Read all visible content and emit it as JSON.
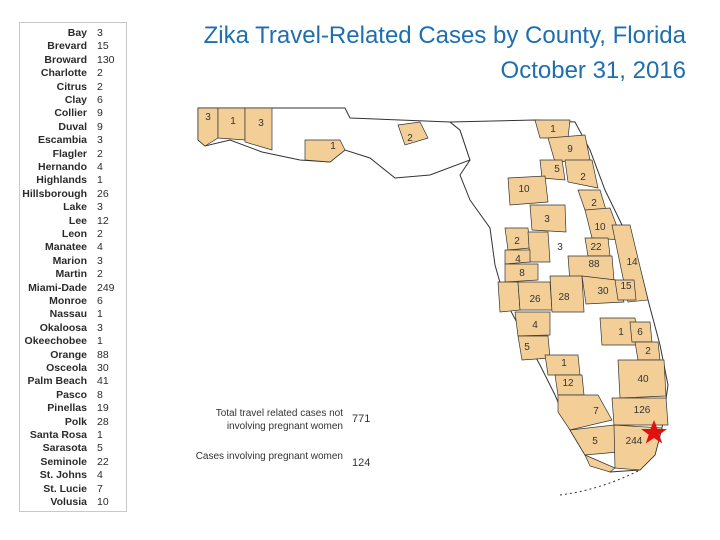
{
  "title": {
    "line1": "Zika Travel-Related Cases by County, Florida",
    "line2": "October 31, 2016"
  },
  "counties": [
    {
      "name": "Bay",
      "value": "3"
    },
    {
      "name": "Brevard",
      "value": "15"
    },
    {
      "name": "Broward",
      "value": "130"
    },
    {
      "name": "Charlotte",
      "value": "2"
    },
    {
      "name": "Citrus",
      "value": "2"
    },
    {
      "name": "Clay",
      "value": "6"
    },
    {
      "name": "Collier",
      "value": "9"
    },
    {
      "name": "Duval",
      "value": "9"
    },
    {
      "name": "Escambia",
      "value": "3"
    },
    {
      "name": "Flagler",
      "value": "2"
    },
    {
      "name": "Hernando",
      "value": "4"
    },
    {
      "name": "Highlands",
      "value": "1"
    },
    {
      "name": "Hillsborough",
      "value": "26"
    },
    {
      "name": "Lake",
      "value": "3"
    },
    {
      "name": "Lee",
      "value": "12"
    },
    {
      "name": "Leon",
      "value": "2"
    },
    {
      "name": "Manatee",
      "value": "4"
    },
    {
      "name": "Marion",
      "value": "3"
    },
    {
      "name": "Martin",
      "value": "2"
    },
    {
      "name": "Miami-Dade",
      "value": "249"
    },
    {
      "name": "Monroe",
      "value": "6"
    },
    {
      "name": "Nassau",
      "value": "1"
    },
    {
      "name": "Okaloosa",
      "value": "3"
    },
    {
      "name": "Okeechobee",
      "value": "1"
    },
    {
      "name": "Orange",
      "value": "88"
    },
    {
      "name": "Osceola",
      "value": "30"
    },
    {
      "name": "Palm Beach",
      "value": "41"
    },
    {
      "name": "Pasco",
      "value": "8"
    },
    {
      "name": "Pinellas",
      "value": "19"
    },
    {
      "name": "Polk",
      "value": "28"
    },
    {
      "name": "Santa Rosa",
      "value": "1"
    },
    {
      "name": "Sarasota",
      "value": "5"
    },
    {
      "name": "Seminole",
      "value": "22"
    },
    {
      "name": "St. Johns",
      "value": "4"
    },
    {
      "name": "St. Lucie",
      "value": "7"
    },
    {
      "name": "Volusia",
      "value": "10"
    }
  ],
  "map_labels": [
    "3",
    "1",
    "3",
    "1",
    "2",
    "1",
    "9",
    "5",
    "2",
    "10",
    "3",
    "2",
    "10",
    "2",
    "3",
    "22",
    "4",
    "88",
    "8",
    "14",
    "26",
    "28",
    "30",
    "15",
    "4",
    "1",
    "6",
    "5",
    "2",
    "1",
    "40",
    "12",
    "7",
    "126",
    "5",
    "244"
  ],
  "stats": {
    "travel_label": "Total travel related cases not involving pregnant women",
    "travel_value": "771",
    "pregnant_label": "Cases involving pregnant women",
    "pregnant_value": "124"
  },
  "colors": {
    "affected": "#f3cf97",
    "unaffected": "#ffffff",
    "border": "#333333",
    "title": "#1f6fb0",
    "star": "#e01010"
  }
}
